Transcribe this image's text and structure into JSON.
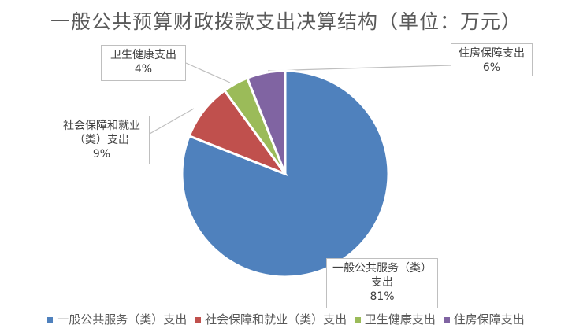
{
  "chart_data": {
    "type": "pie",
    "title": "一般公共预算财政拨款支出决算结构（单位：万元）",
    "categories": [
      "一般公共服务（类）支出",
      "社会保障和就业（类）支出",
      "卫生健康支出",
      "住房保障支出"
    ],
    "values": [
      81,
      9,
      4,
      6
    ],
    "data_labels": [
      {
        "lines": [
          "一般公共服务（类）",
          "支出"
        ],
        "pct": "81%"
      },
      {
        "lines": [
          "社会保障和就业",
          "（类）支出"
        ],
        "pct": "9%"
      },
      {
        "lines": [
          "卫生健康支出"
        ],
        "pct": "4%"
      },
      {
        "lines": [
          "住房保障支出"
        ],
        "pct": "6%"
      }
    ],
    "colors": [
      "#4f81bd",
      "#c0504d",
      "#9bbb59",
      "#8064a2"
    ],
    "legend_position": "bottom",
    "start_angle": "top, clockwise"
  }
}
